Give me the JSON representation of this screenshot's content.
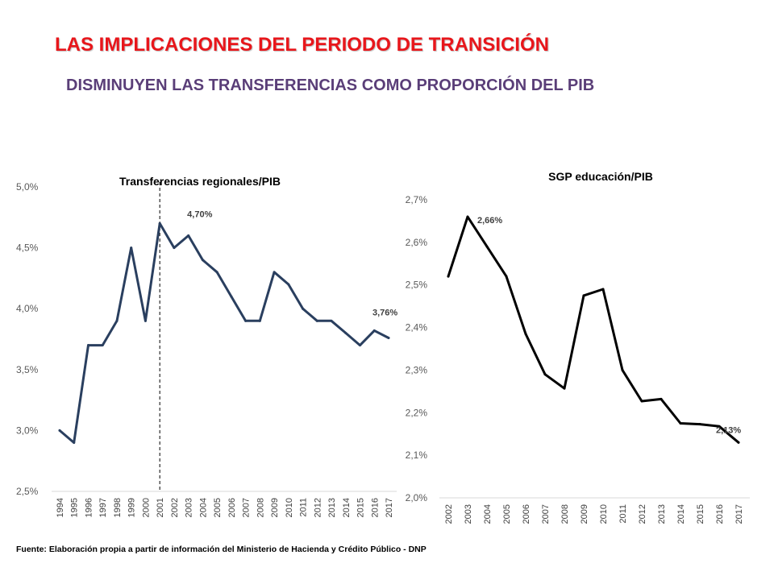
{
  "header": {
    "title": "LAS IMPLICACIONES DEL PERIODO DE TRANSICIÓN",
    "subtitle": "DISMINUYEN LAS TRANSFERENCIAS COMO PROPORCIÓN DEL PIB"
  },
  "footer": {
    "source": "Fuente: Elaboración propia a partir de información del Ministerio de Hacienda y Crédito Público - DNP"
  },
  "colors": {
    "title": "#e8161b",
    "subtitle": "#5a3e78",
    "left_line": "#2a3f5f",
    "right_line": "#000000"
  },
  "chart_data": [
    {
      "type": "line",
      "title": "Transferencias regionales/PIB",
      "categories": [
        "1994",
        "1995",
        "1996",
        "1997",
        "1998",
        "1999",
        "2000",
        "2001",
        "2002",
        "2003",
        "2004",
        "2005",
        "2006",
        "2007",
        "2008",
        "2009",
        "2010",
        "2011",
        "2012",
        "2013",
        "2014",
        "2015",
        "2016",
        "2017"
      ],
      "values": [
        3.0,
        2.9,
        3.7,
        3.7,
        3.9,
        4.5,
        3.9,
        4.7,
        4.5,
        4.6,
        4.4,
        4.3,
        4.1,
        3.9,
        3.9,
        4.3,
        4.2,
        4.0,
        3.9,
        3.9,
        3.8,
        3.7,
        3.82,
        3.76
      ],
      "ylim": [
        2.5,
        5.0
      ],
      "yticks": [
        "2,5%",
        "3,0%",
        "3,5%",
        "4,0%",
        "4,5%",
        "5,0%"
      ],
      "annotations": [
        {
          "text": "4,70%",
          "category": "2001"
        },
        {
          "text": "3,76%",
          "category": "2017"
        }
      ],
      "vertical_marker": {
        "category": "2001",
        "style": "dashed"
      }
    },
    {
      "type": "line",
      "title": "SGP educación/PIB",
      "categories": [
        "2002",
        "2003",
        "2004",
        "2005",
        "2006",
        "2007",
        "2008",
        "2009",
        "2010",
        "2011",
        "2012",
        "2013",
        "2014",
        "2015",
        "2016",
        "2017"
      ],
      "values": [
        2.52,
        2.66,
        2.59,
        2.52,
        2.385,
        2.29,
        2.257,
        2.475,
        2.49,
        2.3,
        2.227,
        2.232,
        2.175,
        2.173,
        2.168,
        2.13
      ],
      "ylim": [
        2.0,
        2.7
      ],
      "yticks": [
        "2,0%",
        "2,1%",
        "2,2%",
        "2,3%",
        "2,4%",
        "2,5%",
        "2,6%",
        "2,7%"
      ],
      "annotations": [
        {
          "text": "2,66%",
          "category": "2003"
        },
        {
          "text": "2,13%",
          "category": "2017"
        }
      ]
    }
  ]
}
